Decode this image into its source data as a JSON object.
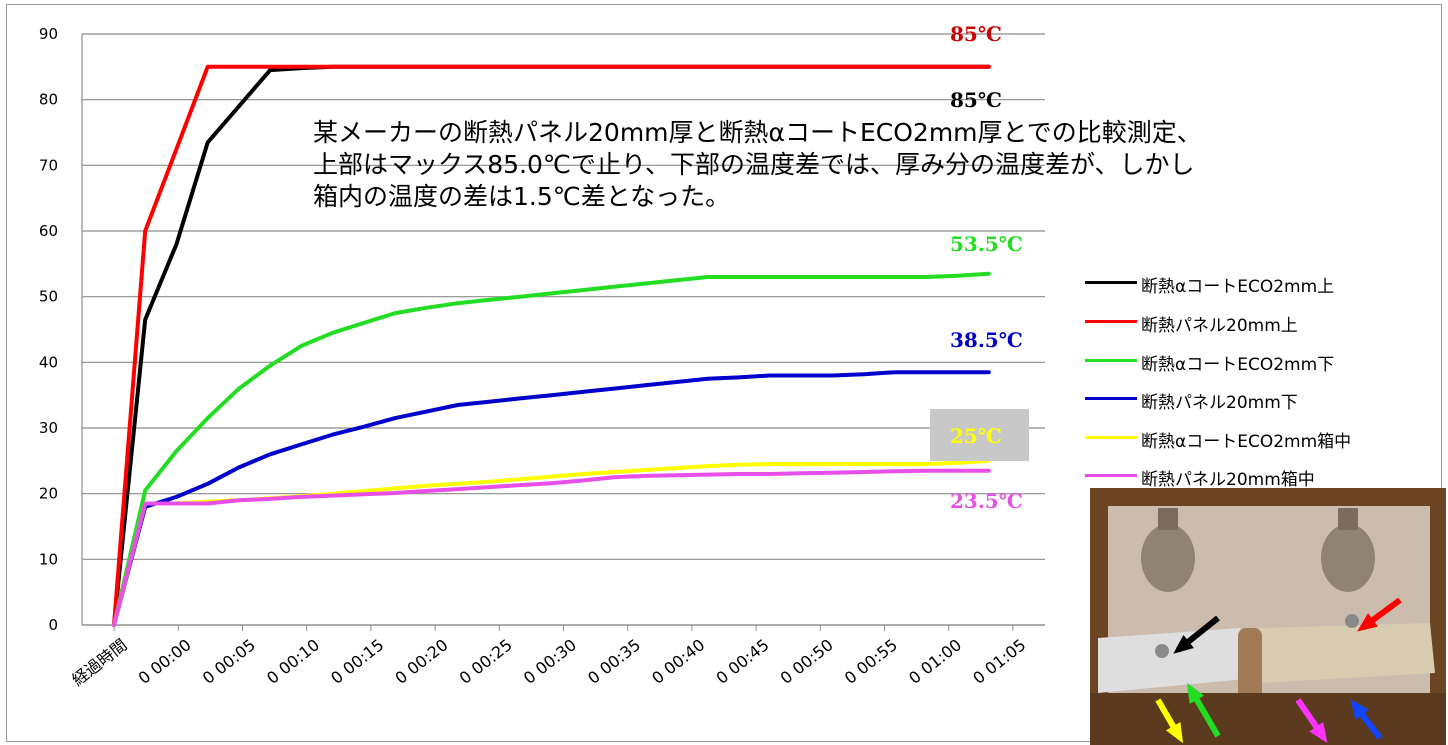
{
  "chart_data": {
    "type": "line",
    "categories": [
      "経過時間",
      "0 00:00",
      "0 00:05",
      "0 00:10",
      "0 00:15",
      "0 00:20",
      "0 00:25",
      "0 00:30",
      "0 00:35",
      "0 00:40",
      "0 00:45",
      "0 00:50",
      "0 00:55",
      "0 01:00",
      "0 01:05"
    ],
    "x": [
      0,
      1,
      2,
      3,
      4,
      5,
      6,
      7,
      8,
      9,
      10,
      11,
      12,
      13,
      14,
      15,
      16,
      17,
      18,
      19,
      20,
      21,
      22,
      23,
      24,
      25,
      26,
      27,
      28
    ],
    "x_ticks": [
      0,
      2,
      4,
      6,
      8,
      10,
      12,
      14,
      16,
      18,
      20,
      22,
      24,
      26,
      28
    ],
    "ylim": [
      0,
      90
    ],
    "yticks": [
      0,
      10,
      20,
      30,
      40,
      50,
      60,
      70,
      80,
      90
    ],
    "grid": true,
    "legend_position": "right",
    "series": [
      {
        "name": "断熱αコートECO2mm上",
        "color": "#000000",
        "values": [
          0,
          46.5,
          58,
          73.5,
          79,
          84.5,
          84.8,
          85,
          85,
          85,
          85,
          85,
          85,
          85,
          85,
          85,
          85,
          85,
          85,
          85,
          85,
          85,
          85,
          85,
          85,
          85,
          85,
          85,
          85
        ]
      },
      {
        "name": "断熱パネル20mm上",
        "color": "#ff0000",
        "values": [
          0,
          60,
          72.5,
          85,
          85,
          85,
          85,
          85,
          85,
          85,
          85,
          85,
          85,
          85,
          85,
          85,
          85,
          85,
          85,
          85,
          85,
          85,
          85,
          85,
          85,
          85,
          85,
          85,
          85
        ]
      },
      {
        "name": "断熱αコートECO2mm下",
        "color": "#22dd22",
        "values": [
          0,
          20.5,
          26.5,
          31.5,
          36,
          39.5,
          42.5,
          44.5,
          46,
          47.5,
          48.3,
          49,
          49.5,
          50,
          50.5,
          51,
          51.5,
          52,
          52.5,
          53,
          53,
          53,
          53,
          53,
          53,
          53,
          53,
          53.2,
          53.5
        ]
      },
      {
        "name": "断熱パネル20mm下",
        "color": "#0000cc",
        "values": [
          0,
          18,
          19.5,
          21.5,
          24,
          26,
          27.5,
          29,
          30.2,
          31.5,
          32.5,
          33.5,
          34,
          34.5,
          35,
          35.5,
          36,
          36.5,
          37,
          37.5,
          37.7,
          38,
          38,
          38,
          38.2,
          38.5,
          38.5,
          38.5,
          38.5
        ]
      },
      {
        "name": "断熱αコートECO2mm箱中",
        "color": "#ffff00",
        "values": [
          0,
          18.5,
          18.5,
          18.8,
          19,
          19.3,
          19.6,
          20,
          20.4,
          20.8,
          21.2,
          21.5,
          21.8,
          22.2,
          22.6,
          23,
          23.3,
          23.6,
          23.9,
          24.2,
          24.4,
          24.5,
          24.5,
          24.5,
          24.5,
          24.5,
          24.5,
          24.7,
          25
        ]
      },
      {
        "name": "断熱パネル20mm箱中",
        "color": "#e84ee8",
        "values": [
          0,
          18.5,
          18.5,
          18.5,
          19,
          19.2,
          19.5,
          19.7,
          19.9,
          20.1,
          20.4,
          20.7,
          21,
          21.3,
          21.6,
          22,
          22.5,
          22.7,
          22.8,
          22.9,
          23,
          23,
          23.1,
          23.2,
          23.3,
          23.4,
          23.5,
          23.5,
          23.5
        ]
      }
    ],
    "annotations": [
      {
        "text": "85℃",
        "color": "#cc0000"
      },
      {
        "text": "85℃",
        "color": "#000000"
      },
      {
        "text": "53.5℃",
        "color": "#22dd22"
      },
      {
        "text": "38.5℃",
        "color": "#0000cc"
      },
      {
        "text": "25℃",
        "color": "#ffff00"
      },
      {
        "text": "23.5℃",
        "color": "#e84ee8"
      }
    ]
  },
  "annotation_text": {
    "line1": "某メーカーの断熱パネル20mm厚と断熱αコートECO2mm厚とでの比較測定、",
    "line2": "上部はマックス85.0℃で止り、下部の温度差では、厚み分の温度差が、しかし",
    "line3": "箱内の温度の差は1.5℃差となった。"
  },
  "photo": {
    "wall_color": "#c9b9a9",
    "board_left_color": "#dcdcdc",
    "board_right_color": "#d8ccb0",
    "wood_color": "#5b3a1e",
    "arrows": [
      {
        "color": "#000000"
      },
      {
        "color": "#ff0000"
      },
      {
        "color": "#ffff00"
      },
      {
        "color": "#22dd22"
      },
      {
        "color": "#ff33ff"
      },
      {
        "color": "#1144ff"
      }
    ]
  }
}
